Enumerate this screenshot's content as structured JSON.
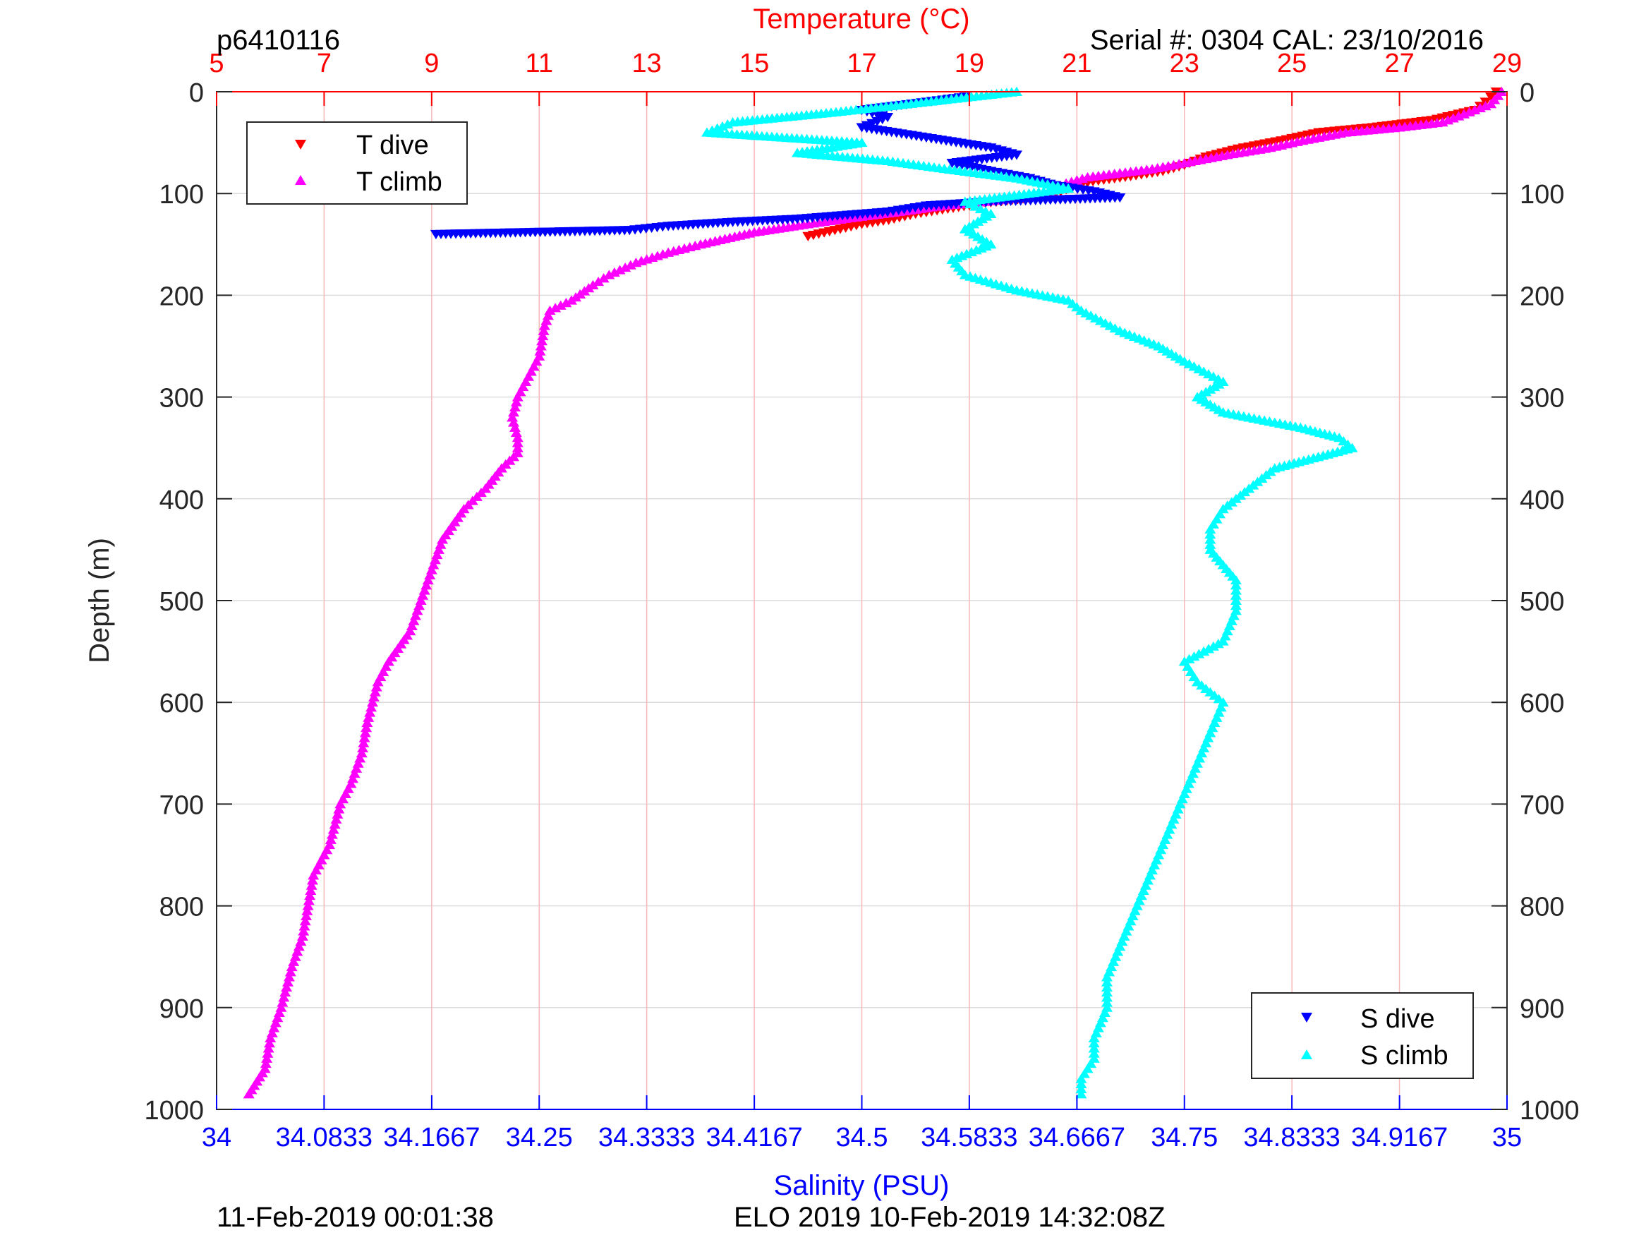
{
  "header": {
    "profile_id": "p6410116",
    "serial": "Serial #: 0304  CAL: 23/10/2016"
  },
  "footer": {
    "left_timestamp": "11-Feb-2019 00:01:38",
    "right_info": "ELO 2019 10-Feb-2019 14:32:08Z"
  },
  "colors": {
    "t_dive": "#ff0000",
    "t_climb": "#ff00ff",
    "s_dive": "#0000ff",
    "s_climb": "#00ffff",
    "temperature_axis": "#ff0000",
    "salinity_axis": "#0000ff",
    "depth_axis": "#262626",
    "grid_temperature": "#f7b8b8",
    "grid_depth": "#dcdcdc"
  },
  "chart_data": {
    "type": "scatter",
    "depth_axis": {
      "label": "Depth (m)",
      "range": [
        0,
        1000
      ],
      "reversed": true,
      "ticks": [
        "0",
        "100",
        "200",
        "300",
        "400",
        "500",
        "600",
        "700",
        "800",
        "900",
        "1000"
      ]
    },
    "temperature_axis": {
      "label": "Temperature (°C)",
      "position": "top",
      "range": [
        5,
        29
      ],
      "ticks": [
        "5",
        "7",
        "9",
        "11",
        "13",
        "15",
        "17",
        "19",
        "21",
        "23",
        "25",
        "27",
        "29"
      ]
    },
    "salinity_axis": {
      "label": "Salinity (PSU)",
      "position": "bottom",
      "range": [
        34,
        35
      ],
      "ticks": [
        "34",
        "34.0833",
        "34.1667",
        "34.25",
        "34.3333",
        "34.4167",
        "34.5",
        "34.5833",
        "34.6667",
        "34.75",
        "34.8333",
        "34.9167",
        "35"
      ]
    },
    "grid": true,
    "legends": [
      {
        "placement": "top-left",
        "entries": [
          "T dive",
          "T climb"
        ]
      },
      {
        "placement": "bottom-right",
        "entries": [
          "S dive",
          "S climb"
        ]
      }
    ],
    "series": [
      {
        "name": "T dive",
        "axis": "temperature",
        "marker": "triangle-down",
        "points": [
          [
            28.8,
            0
          ],
          [
            28.6,
            10
          ],
          [
            28.4,
            18
          ],
          [
            27.6,
            28
          ],
          [
            26.5,
            35
          ],
          [
            25.5,
            40
          ],
          [
            24.8,
            48
          ],
          [
            24.0,
            56
          ],
          [
            23.4,
            64
          ],
          [
            23.0,
            72
          ],
          [
            22.6,
            78
          ],
          [
            22.0,
            83
          ],
          [
            21.3,
            88
          ],
          [
            21.0,
            92
          ],
          [
            20.6,
            100
          ],
          [
            20.0,
            105
          ],
          [
            19.2,
            110
          ],
          [
            18.6,
            115
          ],
          [
            18.0,
            120
          ],
          [
            17.5,
            126
          ],
          [
            17.0,
            130
          ],
          [
            16.5,
            136
          ],
          [
            16.0,
            142
          ]
        ]
      },
      {
        "name": "T climb",
        "axis": "temperature",
        "marker": "triangle-up",
        "points": [
          [
            28.9,
            0
          ],
          [
            28.7,
            12
          ],
          [
            28.2,
            22
          ],
          [
            27.8,
            30
          ],
          [
            27.0,
            35
          ],
          [
            26.0,
            40
          ],
          [
            25.2,
            48
          ],
          [
            24.6,
            55
          ],
          [
            23.8,
            62
          ],
          [
            23.0,
            70
          ],
          [
            22.4,
            76
          ],
          [
            21.8,
            80
          ],
          [
            21.2,
            84
          ],
          [
            20.8,
            90
          ],
          [
            20.4,
            100
          ],
          [
            20.0,
            104
          ],
          [
            19.3,
            108
          ],
          [
            18.5,
            112
          ],
          [
            17.7,
            118
          ],
          [
            16.8,
            124
          ],
          [
            16.0,
            130
          ],
          [
            15.0,
            138
          ],
          [
            14.0,
            150
          ],
          [
            13.4,
            158
          ],
          [
            12.8,
            168
          ],
          [
            12.3,
            180
          ],
          [
            12.0,
            190
          ],
          [
            11.6,
            205
          ],
          [
            11.2,
            215
          ],
          [
            11.1,
            230
          ],
          [
            11.0,
            260
          ],
          [
            10.8,
            280
          ],
          [
            10.6,
            300
          ],
          [
            10.5,
            320
          ],
          [
            10.6,
            340
          ],
          [
            10.6,
            355
          ],
          [
            10.3,
            370
          ],
          [
            10.0,
            390
          ],
          [
            9.6,
            410
          ],
          [
            9.2,
            440
          ],
          [
            9.0,
            470
          ],
          [
            8.8,
            500
          ],
          [
            8.6,
            530
          ],
          [
            8.2,
            560
          ],
          [
            8.0,
            580
          ],
          [
            7.9,
            600
          ],
          [
            7.8,
            620
          ],
          [
            7.7,
            650
          ],
          [
            7.5,
            680
          ],
          [
            7.3,
            700
          ],
          [
            7.1,
            740
          ],
          [
            6.8,
            770
          ],
          [
            6.7,
            800
          ],
          [
            6.6,
            830
          ],
          [
            6.4,
            860
          ],
          [
            6.2,
            900
          ],
          [
            6.0,
            930
          ],
          [
            5.9,
            960
          ],
          [
            5.6,
            985
          ]
        ]
      },
      {
        "name": "S dive",
        "axis": "salinity",
        "marker": "triangle-down",
        "points": [
          [
            34.58,
            5
          ],
          [
            34.55,
            10
          ],
          [
            34.5,
            18
          ],
          [
            34.52,
            25
          ],
          [
            34.5,
            35
          ],
          [
            34.55,
            45
          ],
          [
            34.6,
            55
          ],
          [
            34.62,
            62
          ],
          [
            34.57,
            70
          ],
          [
            34.6,
            78
          ],
          [
            34.63,
            85
          ],
          [
            34.65,
            92
          ],
          [
            34.68,
            98
          ],
          [
            34.7,
            104
          ],
          [
            34.6,
            108
          ],
          [
            34.55,
            112
          ],
          [
            34.52,
            118
          ],
          [
            34.45,
            125
          ],
          [
            34.4,
            128
          ],
          [
            34.35,
            132
          ],
          [
            34.32,
            136
          ],
          [
            34.17,
            140
          ]
        ]
      },
      {
        "name": "S climb",
        "axis": "salinity",
        "marker": "triangle-up",
        "points": [
          [
            34.62,
            0
          ],
          [
            34.55,
            10
          ],
          [
            34.48,
            20
          ],
          [
            34.4,
            30
          ],
          [
            34.38,
            40
          ],
          [
            34.5,
            50
          ],
          [
            34.45,
            60
          ],
          [
            34.52,
            68
          ],
          [
            34.56,
            75
          ],
          [
            34.62,
            85
          ],
          [
            34.66,
            95
          ],
          [
            34.58,
            108
          ],
          [
            34.6,
            120
          ],
          [
            34.58,
            135
          ],
          [
            34.6,
            150
          ],
          [
            34.57,
            165
          ],
          [
            34.58,
            180
          ],
          [
            34.62,
            195
          ],
          [
            34.66,
            205
          ],
          [
            34.67,
            215
          ],
          [
            34.7,
            235
          ],
          [
            34.73,
            250
          ],
          [
            34.75,
            265
          ],
          [
            34.78,
            285
          ],
          [
            34.76,
            300
          ],
          [
            34.78,
            315
          ],
          [
            34.84,
            330
          ],
          [
            34.87,
            340
          ],
          [
            34.88,
            350
          ],
          [
            34.82,
            370
          ],
          [
            34.8,
            390
          ],
          [
            34.78,
            410
          ],
          [
            34.77,
            430
          ],
          [
            34.77,
            450
          ],
          [
            34.79,
            480
          ],
          [
            34.79,
            510
          ],
          [
            34.78,
            540
          ],
          [
            34.75,
            560
          ],
          [
            34.76,
            580
          ],
          [
            34.78,
            600
          ],
          [
            34.77,
            630
          ],
          [
            34.76,
            660
          ],
          [
            34.75,
            690
          ],
          [
            34.74,
            720
          ],
          [
            34.73,
            750
          ],
          [
            34.72,
            780
          ],
          [
            34.71,
            810
          ],
          [
            34.7,
            840
          ],
          [
            34.69,
            870
          ],
          [
            34.69,
            900
          ],
          [
            34.68,
            930
          ],
          [
            34.68,
            950
          ],
          [
            34.67,
            970
          ],
          [
            34.67,
            985
          ]
        ]
      }
    ]
  }
}
